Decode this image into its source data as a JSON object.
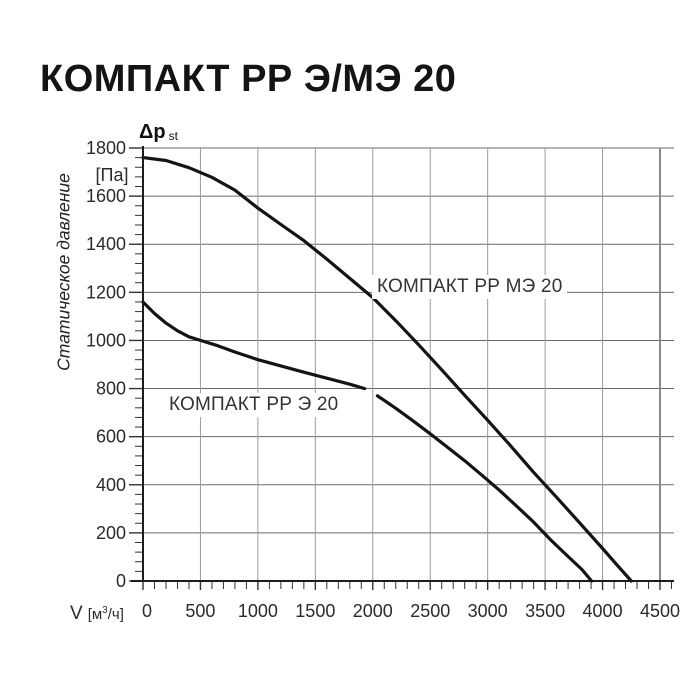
{
  "page": {
    "title": "КОМПАКТ РР Э/МЭ 20"
  },
  "chart_data": {
    "type": "line",
    "title": "КОМПАКТ РР Э/МЭ 20",
    "x_axis": {
      "title_v": "V",
      "title_unit_pre": "[м",
      "title_unit_sup": "3",
      "title_unit_post": "/ч]",
      "min": 0,
      "max": 4500,
      "major_step": 500,
      "minor_step": 100,
      "minor_extend_to": 4600,
      "tick_labels": [
        "0",
        "500",
        "1000",
        "1500",
        "2000",
        "2500",
        "3000",
        "3500",
        "4000",
        "4500"
      ]
    },
    "y_axis": {
      "title_main": "Δp",
      "title_sub": "st",
      "unit": "[Па]",
      "side_label": "Статическое давление",
      "min": 0,
      "max": 1800,
      "major_step": 200,
      "minor_step": 40,
      "tick_labels": [
        "0",
        "200",
        "400",
        "600",
        "800",
        "1000",
        "1200",
        "1400",
        "1600",
        "1800"
      ]
    },
    "grid": true,
    "legend_position": "inline-labels",
    "colors": {
      "curve": "#141414",
      "axis": "#1c1c1c",
      "tick": "#333333",
      "h_grid": "#6a6a6a",
      "v_grid": "#9a9a9a",
      "frame": "#8a8a8a",
      "label_text": "#333333"
    },
    "series": [
      {
        "id": "me20",
        "name": "КОМПАКТ РР МЭ 20",
        "segments": [
          [
            [
              0,
              1760
            ],
            [
              200,
              1748
            ],
            [
              400,
              1718
            ],
            [
              600,
              1678
            ],
            [
              800,
              1625
            ],
            [
              1000,
              1550
            ],
            [
              1200,
              1482
            ],
            [
              1400,
              1415
            ],
            [
              1600,
              1338
            ],
            [
              1800,
              1258
            ],
            [
              2000,
              1178
            ],
            [
              2200,
              1082
            ],
            [
              2400,
              982
            ],
            [
              2600,
              878
            ],
            [
              2800,
              772
            ],
            [
              3000,
              668
            ],
            [
              3200,
              562
            ],
            [
              3400,
              452
            ],
            [
              3600,
              348
            ],
            [
              3800,
              242
            ],
            [
              4000,
              135
            ],
            [
              4120,
              70
            ],
            [
              4250,
              0
            ]
          ]
        ]
      },
      {
        "id": "e20",
        "name": "КОМПАКТ РР Э 20",
        "segments": [
          [
            [
              0,
              1160
            ],
            [
              100,
              1112
            ],
            [
              200,
              1072
            ],
            [
              300,
              1040
            ],
            [
              400,
              1015
            ],
            [
              500,
              1000
            ],
            [
              650,
              978
            ],
            [
              800,
              952
            ],
            [
              1000,
              920
            ],
            [
              1200,
              894
            ],
            [
              1400,
              868
            ],
            [
              1600,
              843
            ],
            [
              1800,
              818
            ],
            [
              1930,
              800
            ]
          ],
          [
            [
              2040,
              770
            ],
            [
              2200,
              718
            ],
            [
              2350,
              666
            ],
            [
              2500,
              612
            ],
            [
              2650,
              556
            ],
            [
              2800,
              500
            ],
            [
              2950,
              440
            ],
            [
              3100,
              378
            ],
            [
              3250,
              312
            ],
            [
              3400,
              245
            ],
            [
              3550,
              170
            ],
            [
              3700,
              102
            ],
            [
              3820,
              48
            ],
            [
              3905,
              0
            ]
          ]
        ]
      }
    ]
  }
}
